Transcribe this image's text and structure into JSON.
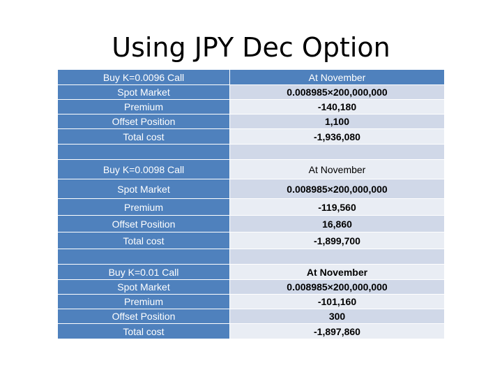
{
  "slide": {
    "title": "Using JPY Dec Option"
  },
  "table": {
    "rows": [
      {
        "label": "Buy K=0.0096 Call",
        "value": "At November"
      },
      {
        "label": "Spot Market",
        "value": "0.008985×200,000,000"
      },
      {
        "label": "Premium",
        "value": "-140,180"
      },
      {
        "label": "Offset Position",
        "value": "1,100"
      },
      {
        "label": "Total cost",
        "value": "-1,936,080"
      },
      {
        "label": "",
        "value": ""
      },
      {
        "label": "Buy K=0.0098 Call",
        "value": "At November"
      },
      {
        "label": "Spot Market",
        "value": "0.008985×200,000,000"
      },
      {
        "label": "Premium",
        "value": "-119,560"
      },
      {
        "label": "Offset Position",
        "value": "16,860"
      },
      {
        "label": "Total cost",
        "value": "-1,899,700"
      },
      {
        "label": "",
        "value": ""
      },
      {
        "label": "Buy K=0.01 Call",
        "value": "At November"
      },
      {
        "label": "Spot Market",
        "value": "0.008985×200,000,000"
      },
      {
        "label": "Premium",
        "value": "-101,160"
      },
      {
        "label": "Offset Position",
        "value": "300"
      },
      {
        "label": "Total cost",
        "value": "-1,897,860"
      }
    ]
  },
  "colors": {
    "header_blue": "#4f81bd",
    "row_band_dark": "#d0d8e8",
    "row_band_light": "#e9edf4"
  }
}
